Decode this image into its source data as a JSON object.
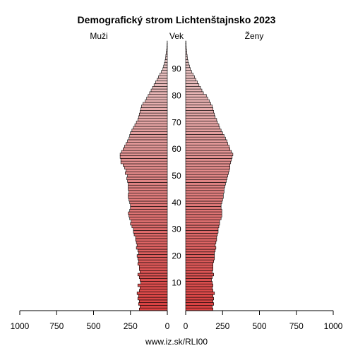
{
  "chart_data": {
    "type": "population-pyramid",
    "title": "Demografický strom Lichtenštajnsko 2023",
    "left_label": "Muži",
    "center_label": "Vek",
    "right_label": "Ženy",
    "source": "www.iz.sk/RLI00",
    "age_ticks": [
      10,
      20,
      30,
      40,
      50,
      60,
      70,
      80,
      90
    ],
    "x_ticks_left": [
      "1000",
      "750",
      "500",
      "250",
      "0"
    ],
    "x_ticks_right": [
      "0",
      "250",
      "500",
      "750",
      "1000"
    ],
    "xlim": [
      0,
      1000
    ],
    "age_range": [
      0,
      100
    ],
    "colors": {
      "young": "#d94040",
      "old": "#ead0d0",
      "extreme": "#000000"
    },
    "ages": [
      0,
      1,
      2,
      3,
      4,
      5,
      6,
      7,
      8,
      9,
      10,
      11,
      12,
      13,
      14,
      15,
      16,
      17,
      18,
      19,
      20,
      21,
      22,
      23,
      24,
      25,
      26,
      27,
      28,
      29,
      30,
      31,
      32,
      33,
      34,
      35,
      36,
      37,
      38,
      39,
      40,
      41,
      42,
      43,
      44,
      45,
      46,
      47,
      48,
      49,
      50,
      51,
      52,
      53,
      54,
      55,
      56,
      57,
      58,
      59,
      60,
      61,
      62,
      63,
      64,
      65,
      66,
      67,
      68,
      69,
      70,
      71,
      72,
      73,
      74,
      75,
      76,
      77,
      78,
      79,
      80,
      81,
      82,
      83,
      84,
      85,
      86,
      87,
      88,
      89,
      90,
      91,
      92,
      93,
      94,
      95,
      96,
      97,
      98,
      99,
      100
    ],
    "series": [
      {
        "name": "Muži",
        "values": [
          190,
          185,
          195,
          190,
          200,
          195,
          205,
          190,
          185,
          200,
          180,
          185,
          190,
          200,
          185,
          190,
          190,
          200,
          195,
          200,
          205,
          195,
          200,
          210,
          205,
          210,
          215,
          215,
          225,
          230,
          230,
          240,
          250,
          245,
          255,
          260,
          265,
          255,
          250,
          250,
          255,
          260,
          265,
          265,
          260,
          265,
          265,
          265,
          270,
          275,
          270,
          285,
          280,
          290,
          300,
          315,
          315,
          320,
          320,
          310,
          300,
          290,
          280,
          270,
          260,
          255,
          250,
          240,
          230,
          220,
          210,
          200,
          195,
          190,
          185,
          180,
          175,
          165,
          150,
          140,
          130,
          120,
          110,
          100,
          90,
          80,
          70,
          60,
          50,
          40,
          30,
          25,
          20,
          15,
          12,
          10,
          8,
          5,
          3,
          2,
          1
        ]
      },
      {
        "name": "Ženy",
        "values": [
          185,
          180,
          190,
          185,
          190,
          185,
          195,
          185,
          180,
          185,
          180,
          175,
          180,
          190,
          180,
          185,
          185,
          185,
          190,
          195,
          195,
          195,
          200,
          205,
          200,
          205,
          210,
          210,
          215,
          220,
          220,
          225,
          230,
          230,
          240,
          245,
          245,
          245,
          240,
          240,
          245,
          250,
          255,
          255,
          260,
          260,
          265,
          270,
          275,
          280,
          285,
          290,
          295,
          300,
          300,
          305,
          310,
          315,
          320,
          310,
          300,
          295,
          285,
          280,
          270,
          260,
          250,
          240,
          230,
          225,
          215,
          210,
          200,
          195,
          190,
          185,
          180,
          170,
          160,
          150,
          140,
          120,
          110,
          100,
          90,
          80,
          70,
          60,
          50,
          40,
          32,
          26,
          20,
          15,
          12,
          10,
          8,
          6,
          4,
          3,
          2
        ]
      }
    ]
  }
}
